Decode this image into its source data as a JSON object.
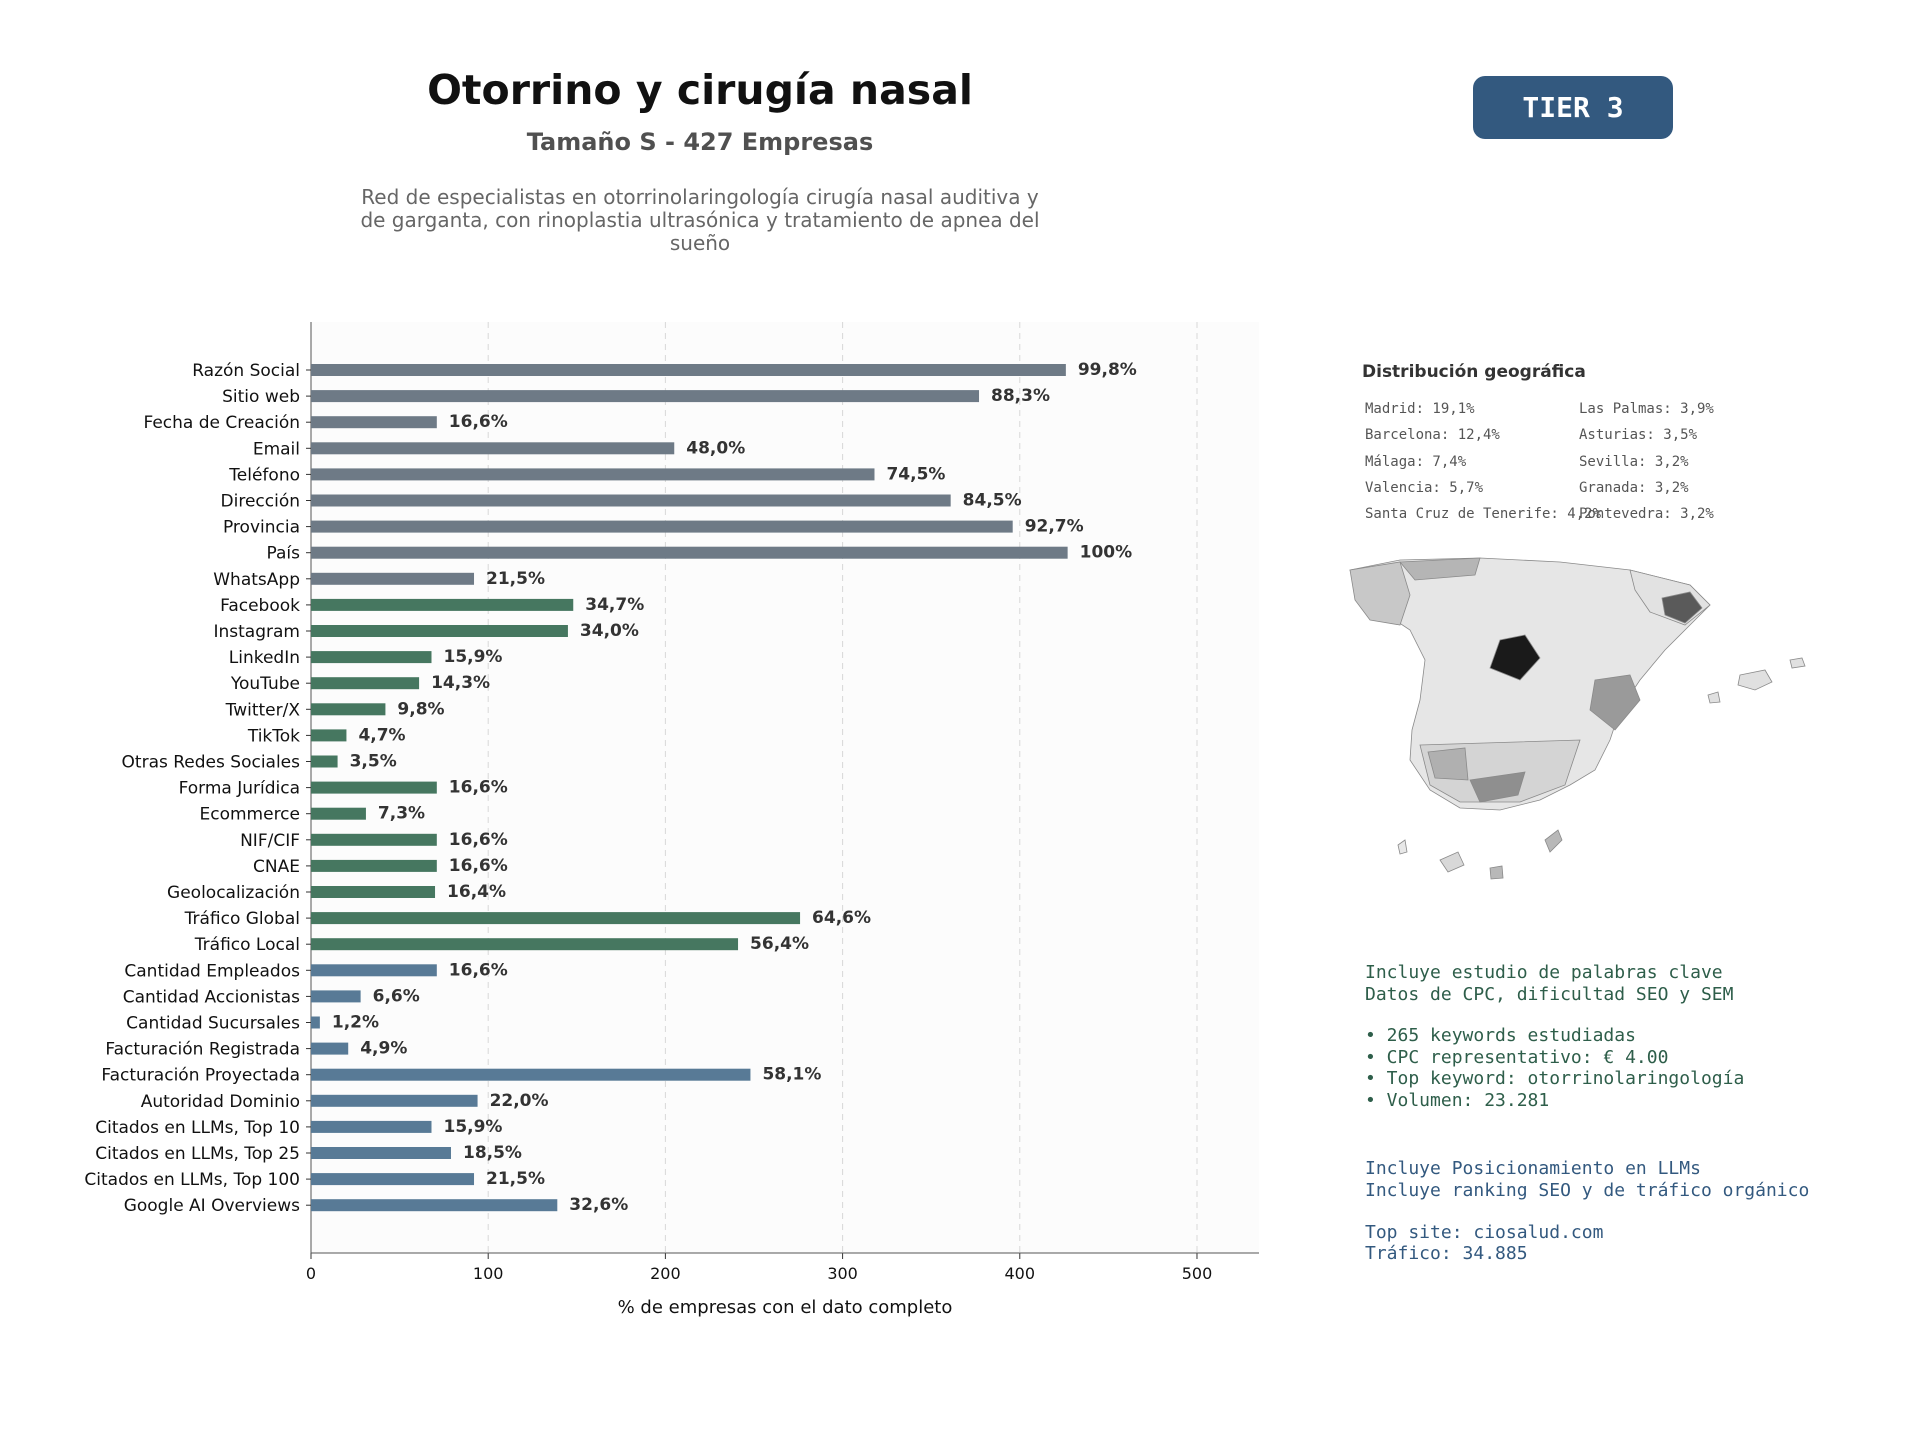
{
  "header": {
    "title": "Otorrino y cirugía nasal",
    "subtitle": "Tamaño S - 427 Empresas",
    "description_lines": [
      "Red de especialistas en otorrinolaringología cirugía nasal auditiva y",
      "de garganta, con rinoplastia ultrasónica y tratamiento de apnea del",
      "sueño"
    ],
    "tier_badge": "TIER 3"
  },
  "chart_data": {
    "type": "bar",
    "orientation": "horizontal",
    "xlabel": "% de empresas con el dato completo",
    "ylabel": "",
    "xlim": [
      0,
      535
    ],
    "xticks": [
      0,
      100,
      200,
      300,
      400,
      500
    ],
    "grid": "vertical dashed",
    "categories": [
      "Razón Social",
      "Sitio web",
      "Fecha de Creación",
      "Email",
      "Teléfono",
      "Dirección",
      "Provincia",
      "País",
      "WhatsApp",
      "Facebook",
      "Instagram",
      "LinkedIn",
      "YouTube",
      "Twitter/X",
      "TikTok",
      "Otras Redes Sociales",
      "Forma Jurídica",
      "Ecommerce",
      "NIF/CIF",
      "CNAE",
      "Geolocalización",
      "Tráfico Global",
      "Tráfico Local",
      "Cantidad Empleados",
      "Cantidad Accionistas",
      "Cantidad Sucursales",
      "Facturación Registrada",
      "Facturación Proyectada",
      "Autoridad Dominio",
      "Citados en LLMs, Top 10",
      "Citados en LLMs, Top 25",
      "Citados en LLMs, Top 100",
      "Google AI Overviews"
    ],
    "values": [
      426,
      377,
      71,
      205,
      318,
      361,
      396,
      427,
      92,
      148,
      145,
      68,
      61,
      42,
      20,
      15,
      71,
      31,
      71,
      71,
      70,
      276,
      241,
      71,
      28,
      5,
      21,
      248,
      94,
      68,
      79,
      92,
      139
    ],
    "labels": [
      "99,8%",
      "88,3%",
      "16,6%",
      "48,0%",
      "74,5%",
      "84,5%",
      "92,7%",
      "100%",
      "21,5%",
      "34,7%",
      "34,0%",
      "15,9%",
      "14,3%",
      "9,8%",
      "4,7%",
      "3,5%",
      "16,6%",
      "7,3%",
      "16,6%",
      "16,6%",
      "16,4%",
      "64,6%",
      "56,4%",
      "16,6%",
      "6,6%",
      "1,2%",
      "4,9%",
      "58,1%",
      "22,0%",
      "15,9%",
      "18,5%",
      "21,5%",
      "32,6%"
    ],
    "groups": [
      "gray",
      "gray",
      "gray",
      "gray",
      "gray",
      "gray",
      "gray",
      "gray",
      "gray",
      "green",
      "green",
      "green",
      "green",
      "green",
      "green",
      "green",
      "green",
      "green",
      "green",
      "green",
      "green",
      "green",
      "green",
      "blue",
      "blue",
      "blue",
      "blue",
      "blue",
      "blue",
      "blue",
      "blue",
      "blue",
      "blue"
    ],
    "colors": {
      "gray": "#6e7a86",
      "green": "#467760",
      "blue": "#587a96"
    }
  },
  "geo": {
    "title": "Distribución geográfica",
    "col1": [
      "Madrid: 19,1%",
      "Barcelona: 12,4%",
      "Málaga: 7,4%",
      "Valencia: 5,7%",
      "Santa Cruz de Tenerife: 4,2%"
    ],
    "col2": [
      "Las Palmas: 3,9%",
      "Asturias: 3,5%",
      "Sevilla: 3,2%",
      "Granada: 3,2%",
      "Pontevedra: 3,2%"
    ]
  },
  "keywords": {
    "line1": "Incluye estudio de palabras clave",
    "line2": "Datos de CPC, dificultad SEO y SEM",
    "bullets": [
      "• 265 keywords estudiadas",
      "• CPC representativo: € 4.00",
      "• Top keyword: otorrinolaringología",
      "• Volumen: 23.281"
    ]
  },
  "llm": {
    "line1": "Incluye Posicionamiento en LLMs",
    "line2": "Incluye ranking SEO y de tráfico orgánico",
    "top_site": "Top site: ciosalud.com",
    "traffic": "Tráfico: 34.885"
  }
}
